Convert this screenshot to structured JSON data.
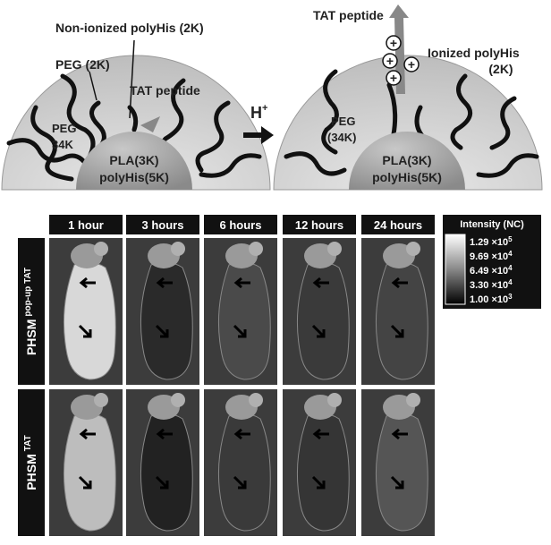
{
  "schematic": {
    "labels": {
      "non_ionized": "Non-ionized polyHis (2K)",
      "peg2k": "PEG (2K)",
      "tat_left": "TAT peptide",
      "peg34k_left_1": "PEG",
      "peg34k_left_2": "34K",
      "core_left_1": "PLA(3K)",
      "core_left_2": "polyHis(5K)",
      "h": "H",
      "h_sup": "+",
      "tat_right": "TAT peptide",
      "ionized_1": "Ionized polyHis",
      "ionized_2": "(2K)",
      "peg34k_right_1": "PEG",
      "peg34k_right_2": "(34K)",
      "core_right_1": "PLA(3K)",
      "core_right_2": "polyHis(5K)",
      "plus": "+"
    }
  },
  "imaging": {
    "columns": [
      "1 hour",
      "3 hours",
      "6 hours",
      "12 hours",
      "24 hours"
    ],
    "rows": [
      {
        "name": "PHSM",
        "sup": "pop-up TAT"
      },
      {
        "name": "PHSM",
        "sup": "TAT"
      }
    ],
    "legend": {
      "title": "Intensity (NC)",
      "entries": [
        {
          "base": "1.29 ×10",
          "exp": "5"
        },
        {
          "base": "9.69 ×10",
          "exp": "4"
        },
        {
          "base": "6.49 ×10",
          "exp": "4"
        },
        {
          "base": "3.30 ×10",
          "exp": "4"
        },
        {
          "base": "1.00 ×10",
          "exp": "3"
        }
      ]
    }
  }
}
